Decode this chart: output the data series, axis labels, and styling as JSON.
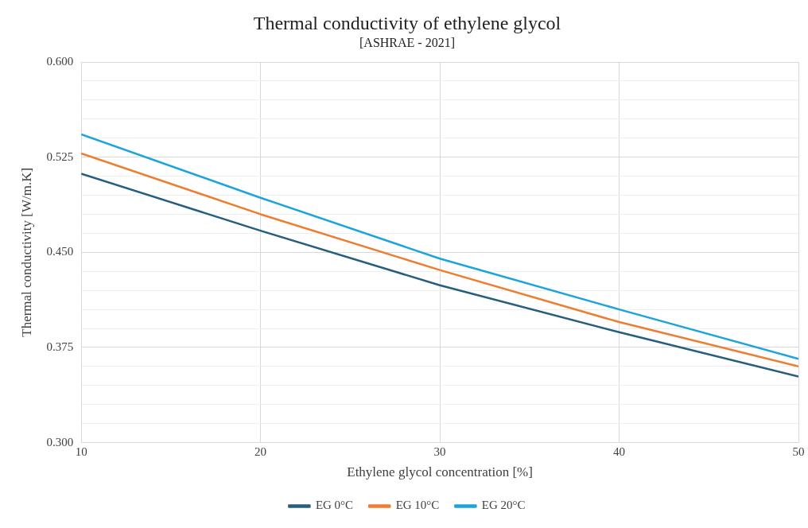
{
  "chart_data": {
    "type": "line",
    "title": "Thermal conductivity of ethylene glycol",
    "subtitle": "[ASHRAE - 2021]",
    "xlabel": "Ethylene glycol concentration [%]",
    "ylabel": "Thermal conductivity [W/m.K]",
    "x": [
      10,
      20,
      30,
      40,
      50
    ],
    "series": [
      {
        "name": "EG 0°C",
        "color": "#255e7e",
        "values": [
          0.512,
          0.467,
          0.424,
          0.387,
          0.352
        ]
      },
      {
        "name": "EG 10°C",
        "color": "#ed7d31",
        "values": [
          0.528,
          0.48,
          0.436,
          0.395,
          0.36
        ]
      },
      {
        "name": "EG 20°C",
        "color": "#1ca4db",
        "values": [
          0.543,
          0.493,
          0.445,
          0.405,
          0.366
        ]
      }
    ],
    "xlim": [
      10,
      50
    ],
    "xticks": [
      10,
      20,
      30,
      40,
      50
    ],
    "ylim": [
      0.3,
      0.6
    ],
    "yticks": [
      {
        "value": 0.3,
        "label": "0.300"
      },
      {
        "value": 0.315,
        "label": null
      },
      {
        "value": 0.33,
        "label": null
      },
      {
        "value": 0.345,
        "label": null
      },
      {
        "value": 0.36,
        "label": null
      },
      {
        "value": 0.375,
        "label": "0.375"
      },
      {
        "value": 0.39,
        "label": null
      },
      {
        "value": 0.405,
        "label": null
      },
      {
        "value": 0.42,
        "label": null
      },
      {
        "value": 0.435,
        "label": null
      },
      {
        "value": 0.45,
        "label": "0.450"
      },
      {
        "value": 0.465,
        "label": null
      },
      {
        "value": 0.48,
        "label": null
      },
      {
        "value": 0.495,
        "label": null
      },
      {
        "value": 0.51,
        "label": null
      },
      {
        "value": 0.525,
        "label": "0.525"
      },
      {
        "value": 0.54,
        "label": null
      },
      {
        "value": 0.555,
        "label": null
      },
      {
        "value": 0.57,
        "label": null
      },
      {
        "value": 0.585,
        "label": null
      },
      {
        "value": 0.6,
        "label": "0.600"
      }
    ],
    "grid": true,
    "legend": "bottom",
    "marker": "none",
    "line_style": "solid"
  }
}
